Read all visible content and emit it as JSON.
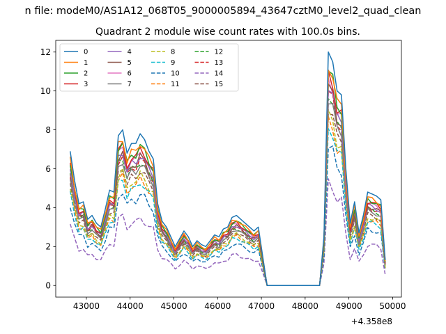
{
  "figure": {
    "suptitle": "n file: modeM0/AS1A12_068T05_9000005894_43647cztM0_level2_quad_clean",
    "title": "Quadrant 2 module wise count rates with 100.0s bins.",
    "x_offset_label": "+4.358e8"
  },
  "chart_data": {
    "type": "line",
    "title": "Quadrant 2 module wise count rates with 100.0s bins.",
    "xlabel": "",
    "ylabel": "",
    "x_offset": 435800000,
    "xlim": [
      42300,
      50200
    ],
    "ylim": [
      -0.6,
      12.6
    ],
    "xticks": [
      43000,
      44000,
      45000,
      46000,
      47000,
      48000,
      49000,
      50000
    ],
    "yticks": [
      0,
      2,
      4,
      6,
      8,
      10,
      12
    ],
    "xtick_labels": [
      "43000",
      "44000",
      "45000",
      "46000",
      "47000",
      "48000",
      "49000",
      "50000"
    ],
    "ytick_labels": [
      "0",
      "2",
      "4",
      "6",
      "8",
      "10",
      "12"
    ],
    "grid": false,
    "legend": {
      "placement": "top-left",
      "columns": 4
    },
    "envelope": {
      "x": [
        42630,
        42730,
        42830,
        42930,
        43030,
        43130,
        43230,
        43330,
        43430,
        43530,
        43630,
        43730,
        43830,
        43930,
        44030,
        44130,
        44230,
        44330,
        44430,
        44530,
        44630,
        44730,
        44830,
        44930,
        45030,
        45130,
        45230,
        45330,
        45430,
        45530,
        45630,
        45730,
        45830,
        45930,
        46030,
        46130,
        46230,
        46330,
        46430,
        46530,
        46630,
        46730,
        46830,
        46930,
        47030,
        47130,
        47330,
        48330,
        48430,
        48530,
        48630,
        48730,
        48830,
        48930,
        49030,
        49130,
        49230,
        49330,
        49430,
        49530,
        49630,
        49730,
        49830
      ],
      "y": [
        6.9,
        5.4,
        4.2,
        4.3,
        3.4,
        3.6,
        3.2,
        3.0,
        3.9,
        4.9,
        4.8,
        7.7,
        8.0,
        6.8,
        7.3,
        7.3,
        7.8,
        7.5,
        6.9,
        6.5,
        4.2,
        3.3,
        3.0,
        2.5,
        2.0,
        2.4,
        2.8,
        2.5,
        2.0,
        2.3,
        2.1,
        2.0,
        2.3,
        2.6,
        2.5,
        2.9,
        3.0,
        3.5,
        3.6,
        3.4,
        3.2,
        3.0,
        2.8,
        3.0,
        1.5,
        0.0,
        0.0,
        0.0,
        2.5,
        12.0,
        11.5,
        10.0,
        9.8,
        6.0,
        3.2,
        4.3,
        2.7,
        3.6,
        4.8,
        4.7,
        4.6,
        4.4,
        1.3
      ]
    },
    "series": [
      {
        "name": "0",
        "color": "#1f77b4",
        "dash": "solid",
        "scale": 1.0,
        "wave": 0.0,
        "seed": 0
      },
      {
        "name": "1",
        "color": "#ff7f0e",
        "dash": "solid",
        "scale": 0.94,
        "wave": 0.15,
        "seed": 1
      },
      {
        "name": "2",
        "color": "#2ca02c",
        "dash": "solid",
        "scale": 0.92,
        "wave": 0.15,
        "seed": 2
      },
      {
        "name": "3",
        "color": "#d62728",
        "dash": "solid",
        "scale": 0.9,
        "wave": 0.15,
        "seed": 3
      },
      {
        "name": "4",
        "color": "#9467bd",
        "dash": "solid",
        "scale": 0.86,
        "wave": 0.15,
        "seed": 4
      },
      {
        "name": "5",
        "color": "#8c564b",
        "dash": "solid",
        "scale": 0.85,
        "wave": 0.15,
        "seed": 5
      },
      {
        "name": "6",
        "color": "#e377c2",
        "dash": "solid",
        "scale": 0.88,
        "wave": 0.15,
        "seed": 6
      },
      {
        "name": "7",
        "color": "#7f7f7f",
        "dash": "solid",
        "scale": 0.8,
        "wave": 0.15,
        "seed": 7
      },
      {
        "name": "8",
        "color": "#bcbd22",
        "dash": "dashed",
        "scale": 0.73,
        "wave": 0.15,
        "seed": 8
      },
      {
        "name": "9",
        "color": "#17becf",
        "dash": "dashed",
        "scale": 0.68,
        "wave": 0.15,
        "seed": 9
      },
      {
        "name": "10",
        "color": "#1f77b4",
        "dash": "dashed",
        "scale": 0.6,
        "wave": 0.15,
        "seed": 10
      },
      {
        "name": "11",
        "color": "#ff7f0e",
        "dash": "dashed",
        "scale": 0.7,
        "wave": 0.15,
        "seed": 11
      },
      {
        "name": "12",
        "color": "#2ca02c",
        "dash": "dashed",
        "scale": 0.82,
        "wave": 0.15,
        "seed": 12
      },
      {
        "name": "13",
        "color": "#d62728",
        "dash": "dashed",
        "scale": 0.83,
        "wave": 0.15,
        "seed": 13
      },
      {
        "name": "14",
        "color": "#9467bd",
        "dash": "dashed",
        "scale": 0.44,
        "wave": 0.15,
        "seed": 14
      },
      {
        "name": "15",
        "color": "#8c564b",
        "dash": "dashed",
        "scale": 0.76,
        "wave": 0.15,
        "seed": 15
      }
    ]
  }
}
